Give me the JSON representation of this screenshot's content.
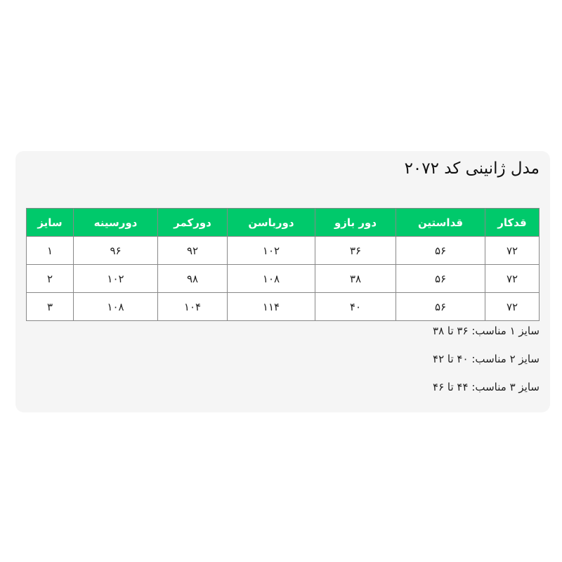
{
  "close_label": "×",
  "title": "مدل ژانینی کد ۲۰۷۲",
  "table": {
    "headers": [
      "قدکار",
      "قداستین",
      "دور بازو",
      "دورباسن",
      "دورکمر",
      "دورسینه",
      "سایز"
    ],
    "rows": [
      [
        "۷۲",
        "۵۶",
        "۳۶",
        "۱۰۲",
        "۹۲",
        "۹۶",
        "۱"
      ],
      [
        "۷۲",
        "۵۶",
        "۳۸",
        "۱۰۸",
        "۹۸",
        "۱۰۲",
        "۲"
      ],
      [
        "۷۲",
        "۵۶",
        "۴۰",
        "۱۱۴",
        "۱۰۴",
        "۱۰۸",
        "۳"
      ]
    ]
  },
  "notes": [
    "سایز ۱ مناسب: ۳۶ تا ۳۸",
    "سایز ۲ مناسب: ۴۰ تا ۴۲",
    "سایز ۳ مناسب: ۴۴ تا ۴۶"
  ],
  "colors": {
    "header_bg": "#00c96b",
    "panel_bg": "#f5f5f5"
  }
}
